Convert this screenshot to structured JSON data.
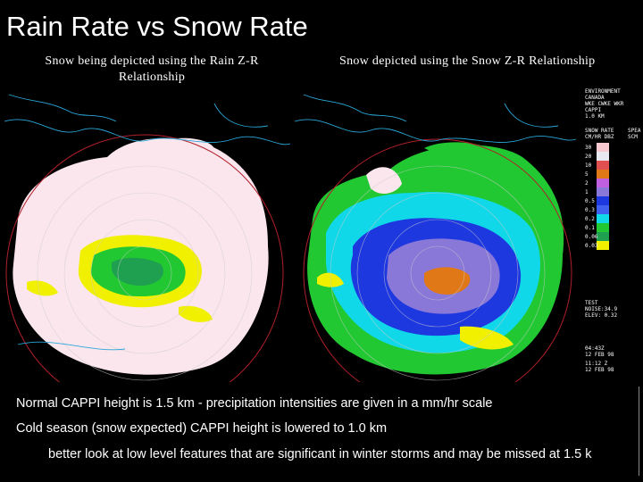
{
  "title": "Rain Rate vs Snow Rate",
  "captions": {
    "left": "Snow being depicted using the Rain  Z-R Relationship",
    "right": "Snow depicted using the Snow Z-R Relationship"
  },
  "notes": [
    "Normal CAPPI height is 1.5 km - precipitation intensities are given in a mm/hr scale",
    "Cold season (snow expected) CAPPI height is lowered to 1.0 km",
    "better look at low level features that are significant in winter storms and may be missed at 1.5 k"
  ],
  "colors": {
    "background": "#000000",
    "ring": "#b0202a",
    "snow_white": "#fbe6ee",
    "green": "#22c832",
    "yellow": "#f0f000",
    "cyan": "#10d8e8",
    "blue": "#1e38e0",
    "purple": "#8a78d8"
  },
  "radar_panel": {
    "header": [
      "ENVIRONMENT",
      "CANADA",
      "WKE  CWKE  WKR",
      "CAPPI",
      "1.0 KM"
    ],
    "legend_title": [
      "SNOW RATE",
      "CM/HR  DBZ",
      "SPEA",
      "SCM"
    ],
    "legend_rows": [
      "30",
      "20",
      "10",
      "5",
      "2",
      "1",
      "0.5",
      "0.3",
      "0.2",
      "0.1",
      "0.06",
      "0.03"
    ],
    "test_block": [
      "TEST",
      "NOISE:34.9",
      "ELEV: 0.32"
    ],
    "footer": [
      "04:43Z",
      "12 FEB 98",
      "11:12 Z",
      "12 FEB 98"
    ]
  }
}
